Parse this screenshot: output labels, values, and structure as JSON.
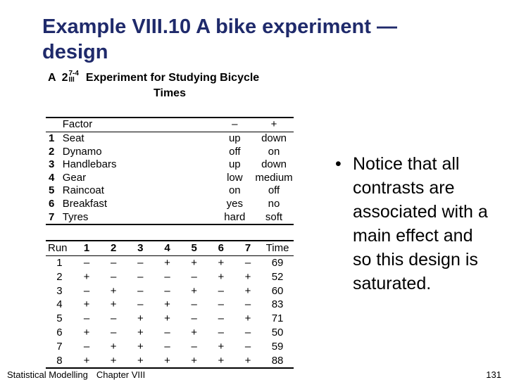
{
  "slide": {
    "title": "Example VIII.10 A bike experiment — design",
    "bullet": "Notice that all contrasts are associated with a main effect and so this design is saturated.",
    "bullet_marker": "•"
  },
  "figure": {
    "caption_prefix": "A",
    "design_base": "2",
    "design_sup": "7-4",
    "design_sub": "III",
    "caption_title": "Experiment for Studying Bicycle",
    "caption_title_2": "Times",
    "factor_table": {
      "headers": [
        "",
        "Factor",
        "–",
        "+"
      ],
      "rows": [
        {
          "num": "1",
          "name": "Seat",
          "minus": "up",
          "plus": "down"
        },
        {
          "num": "2",
          "name": "Dynamo",
          "minus": "off",
          "plus": "on"
        },
        {
          "num": "3",
          "name": "Handlebars",
          "minus": "up",
          "plus": "down"
        },
        {
          "num": "4",
          "name": "Gear",
          "minus": "low",
          "plus": "medium"
        },
        {
          "num": "5",
          "name": "Raincoat",
          "minus": "on",
          "plus": "off"
        },
        {
          "num": "6",
          "name": "Breakfast",
          "minus": "yes",
          "plus": "no"
        },
        {
          "num": "7",
          "name": "Tyres",
          "minus": "hard",
          "plus": "soft"
        }
      ]
    },
    "design_table": {
      "headers": [
        "Run",
        "1",
        "2",
        "3",
        "4",
        "5",
        "6",
        "7",
        "Time"
      ],
      "rows": [
        {
          "run": "1",
          "levels": [
            "–",
            "–",
            "–",
            "+",
            "+",
            "+",
            "–"
          ],
          "time": "69"
        },
        {
          "run": "2",
          "levels": [
            "+",
            "–",
            "–",
            "–",
            "–",
            "+",
            "+"
          ],
          "time": "52"
        },
        {
          "run": "3",
          "levels": [
            "–",
            "+",
            "–",
            "–",
            "+",
            "–",
            "+"
          ],
          "time": "60"
        },
        {
          "run": "4",
          "levels": [
            "+",
            "+",
            "–",
            "+",
            "–",
            "–",
            "–"
          ],
          "time": "83"
        },
        {
          "run": "5",
          "levels": [
            "–",
            "–",
            "+",
            "+",
            "–",
            "–",
            "+"
          ],
          "time": "71"
        },
        {
          "run": "6",
          "levels": [
            "+",
            "–",
            "+",
            "–",
            "+",
            "–",
            "–"
          ],
          "time": "50"
        },
        {
          "run": "7",
          "levels": [
            "–",
            "+",
            "+",
            "–",
            "–",
            "+",
            "–"
          ],
          "time": "59"
        },
        {
          "run": "8",
          "levels": [
            "+",
            "+",
            "+",
            "+",
            "+",
            "+",
            "+"
          ],
          "time": "88"
        }
      ]
    }
  },
  "footer": {
    "course": "Statistical Modelling",
    "chapter": "Chapter VIII",
    "page": "131"
  }
}
